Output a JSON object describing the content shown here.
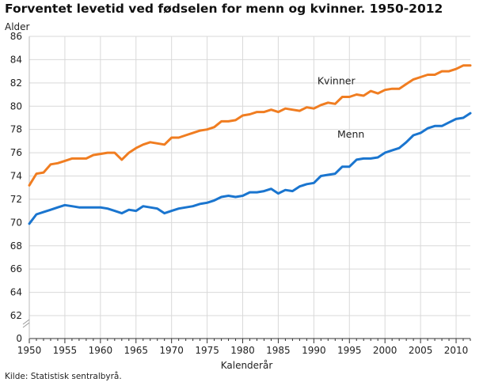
{
  "title": "Forventet levetid ved fødselen for menn og kvinner. 1950-2012",
  "source": "Kilde: Statistisk sentralbyrå.",
  "colors": {
    "kvinner": "#f07d21",
    "menn": "#1a75cf",
    "grid": "#d9d9d9",
    "axis": "#333333",
    "text": "#222222"
  },
  "chart_data": {
    "type": "line",
    "title": "Forventet levetid ved fødselen for menn og kvinner. 1950-2012",
    "ylabel": "Alder",
    "xlabel": "Kalenderår",
    "ylim": [
      0,
      86
    ],
    "y_scale_break": [
      0,
      60
    ],
    "yticks": [
      0,
      62,
      64,
      66,
      68,
      70,
      72,
      74,
      76,
      78,
      80,
      82,
      84,
      86
    ],
    "xticks": [
      1950,
      1955,
      1960,
      1965,
      1970,
      1975,
      1980,
      1985,
      1990,
      1995,
      2000,
      2005,
      2010
    ],
    "xlim": [
      1950,
      2012
    ],
    "grid": true,
    "legend": "inline labels",
    "x": [
      1950,
      1951,
      1952,
      1953,
      1954,
      1955,
      1956,
      1957,
      1958,
      1959,
      1960,
      1961,
      1962,
      1963,
      1964,
      1965,
      1966,
      1967,
      1968,
      1969,
      1970,
      1971,
      1972,
      1973,
      1974,
      1975,
      1976,
      1977,
      1978,
      1979,
      1980,
      1981,
      1982,
      1983,
      1984,
      1985,
      1986,
      1987,
      1988,
      1989,
      1990,
      1991,
      1992,
      1993,
      1994,
      1995,
      1996,
      1997,
      1998,
      1999,
      2000,
      2001,
      2002,
      2003,
      2004,
      2005,
      2006,
      2007,
      2008,
      2009,
      2010,
      2011,
      2012
    ],
    "series": [
      {
        "name": "Kvinner",
        "values": [
          73.2,
          74.2,
          74.3,
          75.0,
          75.1,
          75.3,
          75.5,
          75.5,
          75.5,
          75.8,
          75.9,
          76.0,
          76.0,
          75.4,
          76.0,
          76.4,
          76.7,
          76.9,
          76.8,
          76.7,
          77.3,
          77.3,
          77.5,
          77.7,
          77.9,
          78.0,
          78.2,
          78.7,
          78.7,
          78.8,
          79.2,
          79.3,
          79.5,
          79.5,
          79.7,
          79.5,
          79.8,
          79.7,
          79.6,
          79.9,
          79.8,
          80.1,
          80.3,
          80.2,
          80.8,
          80.8,
          81.0,
          80.9,
          81.3,
          81.1,
          81.4,
          81.5,
          81.5,
          81.9,
          82.3,
          82.5,
          82.7,
          82.7,
          83.0,
          83.0,
          83.2,
          83.5,
          83.5
        ]
      },
      {
        "name": "Menn",
        "values": [
          69.9,
          70.7,
          70.9,
          71.1,
          71.3,
          71.5,
          71.4,
          71.3,
          71.3,
          71.3,
          71.3,
          71.2,
          71.0,
          70.8,
          71.1,
          71.0,
          71.4,
          71.3,
          71.2,
          70.8,
          71.0,
          71.2,
          71.3,
          71.4,
          71.6,
          71.7,
          71.9,
          72.2,
          72.3,
          72.2,
          72.3,
          72.6,
          72.6,
          72.7,
          72.9,
          72.5,
          72.8,
          72.7,
          73.1,
          73.3,
          73.4,
          74.0,
          74.1,
          74.2,
          74.8,
          74.8,
          75.4,
          75.5,
          75.5,
          75.6,
          76.0,
          76.2,
          76.4,
          76.9,
          77.5,
          77.7,
          78.1,
          78.3,
          78.3,
          78.6,
          78.9,
          79.0,
          79.4
        ]
      }
    ]
  }
}
